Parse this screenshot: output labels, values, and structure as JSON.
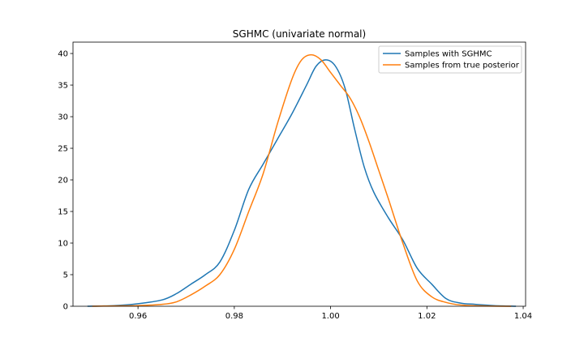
{
  "chart_data": {
    "type": "line",
    "title": "SGHMC (univariate normal)",
    "xlabel": "",
    "ylabel": "",
    "xlim": [
      0.9465,
      1.0405
    ],
    "ylim": [
      0,
      41.8
    ],
    "x_ticks": [
      0.96,
      0.98,
      1.0,
      1.02,
      1.04
    ],
    "x_tick_labels": [
      "0.96",
      "0.98",
      "1.00",
      "1.02",
      "1.04"
    ],
    "y_ticks": [
      0,
      5,
      10,
      15,
      20,
      25,
      30,
      35,
      40
    ],
    "y_tick_labels": [
      "0",
      "5",
      "10",
      "15",
      "20",
      "25",
      "30",
      "35",
      "40"
    ],
    "grid": false,
    "legend_position": "top-right",
    "series": [
      {
        "name": "Samples with SGHMC",
        "color": "#1f77b4",
        "x": [
          0.9495,
          0.955,
          0.96,
          0.965,
          0.968,
          0.971,
          0.974,
          0.977,
          0.98,
          0.983,
          0.986,
          0.989,
          0.992,
          0.995,
          0.997,
          0.999,
          1.001,
          1.003,
          1.005,
          1.007,
          1.009,
          1.012,
          1.015,
          1.018,
          1.021,
          1.024,
          1.027,
          1.03,
          1.034,
          1.0385
        ],
        "y": [
          0.0,
          0.1,
          0.4,
          1.0,
          2.0,
          3.5,
          5.0,
          7.0,
          12.0,
          18.5,
          22.5,
          26.5,
          30.5,
          35.0,
          38.0,
          39.0,
          38.0,
          34.5,
          28.0,
          22.0,
          18.0,
          14.0,
          10.5,
          6.0,
          3.5,
          1.2,
          0.5,
          0.3,
          0.1,
          0.0
        ]
      },
      {
        "name": "Samples from true posterior",
        "color": "#ff7f0e",
        "x": [
          0.9505,
          0.955,
          0.96,
          0.965,
          0.968,
          0.971,
          0.974,
          0.977,
          0.98,
          0.983,
          0.986,
          0.989,
          0.992,
          0.994,
          0.996,
          0.998,
          1.0,
          1.002,
          1.004,
          1.006,
          1.008,
          1.01,
          1.012,
          1.015,
          1.018,
          1.021,
          1.024,
          1.027,
          1.032,
          1.0375
        ],
        "y": [
          0.0,
          0.05,
          0.1,
          0.3,
          0.7,
          1.8,
          3.2,
          5.0,
          9.0,
          15.0,
          21.0,
          29.0,
          36.0,
          39.0,
          39.8,
          39.0,
          37.0,
          35.0,
          33.0,
          30.0,
          26.0,
          21.5,
          17.0,
          10.0,
          4.0,
          1.5,
          0.6,
          0.2,
          0.05,
          0.0
        ]
      }
    ]
  }
}
